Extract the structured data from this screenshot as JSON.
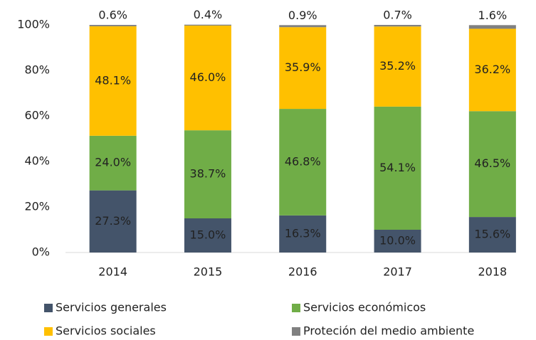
{
  "chart_data": {
    "type": "stacked_bar",
    "categories": [
      "2014",
      "2015",
      "2016",
      "2017",
      "2018"
    ],
    "series": [
      {
        "name": "Servicios generales",
        "color": "#44546a",
        "values": [
          27.3,
          15.0,
          16.3,
          10.0,
          15.6
        ],
        "value_labels": [
          "27.3%",
          "15.0%",
          "16.3%",
          "10.0%",
          "15.6%"
        ]
      },
      {
        "name": "Servicios económicos",
        "color": "#70ad47",
        "values": [
          24.0,
          38.7,
          46.8,
          54.1,
          46.5
        ],
        "value_labels": [
          "24.0%",
          "38.7%",
          "46.8%",
          "54.1%",
          "46.5%"
        ]
      },
      {
        "name": "Servicios sociales",
        "color": "#ffc000",
        "values": [
          48.1,
          46.0,
          35.9,
          35.2,
          36.2
        ],
        "value_labels": [
          "48.1%",
          "46.0%",
          "35.9%",
          "35.2%",
          "36.2%"
        ]
      },
      {
        "name": "Proteción del medio ambiente",
        "color": "#808080",
        "values": [
          0.6,
          0.4,
          0.9,
          0.7,
          1.6
        ],
        "value_labels": [
          "0.6%",
          "0.4%",
          "0.9%",
          "0.7%",
          "1.6%"
        ]
      }
    ],
    "ylim": [
      0,
      100
    ],
    "yticks": [
      {
        "value": 0,
        "label": "0%"
      },
      {
        "value": 20,
        "label": "20%"
      },
      {
        "value": 40,
        "label": "40%"
      },
      {
        "value": 60,
        "label": "60%"
      },
      {
        "value": 80,
        "label": "80%"
      },
      {
        "value": 100,
        "label": "100%"
      }
    ],
    "grid": false,
    "legend": "bottom"
  }
}
